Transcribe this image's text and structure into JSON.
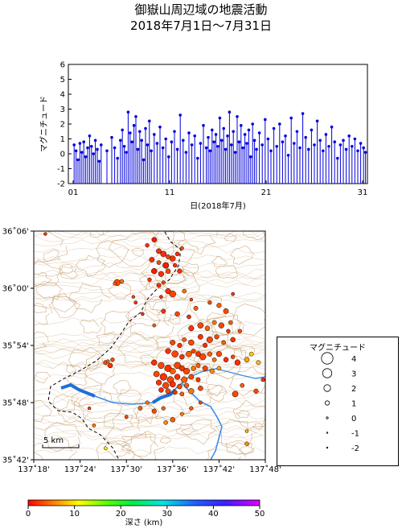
{
  "header": {
    "title_line1": "御嶽山周辺域の地震活動",
    "title_line2": "2018年7月1日～7月31日"
  },
  "colors": {
    "stem": "#0000dd",
    "map_contour": "#c8a070",
    "river": "#3a8ee6",
    "lake": "#1e6fd9"
  },
  "chart_data": [
    {
      "type": "scatter",
      "name": "magnitude-time",
      "title": "",
      "xlabel": "日(2018年7月)",
      "ylabel": "マグニチュード",
      "xlim": [
        0.5,
        31.5
      ],
      "ylim": [
        -2,
        6
      ],
      "x_ticks": [
        "01",
        "11",
        "21",
        "31"
      ],
      "x_tick_values": [
        1,
        11,
        21,
        31
      ],
      "y_ticks": [
        "-2",
        "-1",
        "0",
        "1",
        "2",
        "3",
        "4",
        "5",
        "6"
      ],
      "baseline": -2,
      "marker": "stem",
      "points": [
        [
          1.1,
          0.6
        ],
        [
          1.3,
          0.2
        ],
        [
          1.5,
          -0.4
        ],
        [
          1.7,
          0.7
        ],
        [
          1.9,
          0.1
        ],
        [
          2.1,
          0.8
        ],
        [
          2.3,
          -0.2
        ],
        [
          2.5,
          0.4
        ],
        [
          2.7,
          1.2
        ],
        [
          2.9,
          0.5
        ],
        [
          3.1,
          0.0
        ],
        [
          3.3,
          0.9
        ],
        [
          3.5,
          0.3
        ],
        [
          3.7,
          -0.5
        ],
        [
          3.9,
          0.6
        ],
        [
          4.5,
          0.2
        ],
        [
          5.0,
          1.1
        ],
        [
          5.3,
          0.4
        ],
        [
          5.6,
          -0.3
        ],
        [
          5.9,
          0.9
        ],
        [
          6.1,
          1.6
        ],
        [
          6.3,
          0.5
        ],
        [
          6.5,
          0.1
        ],
        [
          6.7,
          2.8
        ],
        [
          6.9,
          1.4
        ],
        [
          7.1,
          0.8
        ],
        [
          7.3,
          1.9
        ],
        [
          7.5,
          2.5
        ],
        [
          7.7,
          0.3
        ],
        [
          7.9,
          1.5
        ],
        [
          8.1,
          0.9
        ],
        [
          8.3,
          -0.4
        ],
        [
          8.5,
          1.7
        ],
        [
          8.7,
          0.6
        ],
        [
          8.9,
          2.2
        ],
        [
          9.1,
          0.2
        ],
        [
          9.4,
          1.3
        ],
        [
          9.7,
          0.7
        ],
        [
          10.0,
          1.8
        ],
        [
          10.3,
          0.4
        ],
        [
          10.6,
          1.0
        ],
        [
          10.9,
          -0.2
        ],
        [
          11.2,
          0.8
        ],
        [
          11.5,
          1.5
        ],
        [
          11.8,
          0.3
        ],
        [
          12.1,
          2.6
        ],
        [
          12.4,
          0.9
        ],
        [
          12.7,
          0.1
        ],
        [
          13.0,
          1.4
        ],
        [
          13.3,
          0.6
        ],
        [
          13.6,
          1.2
        ],
        [
          13.9,
          -0.3
        ],
        [
          14.2,
          0.7
        ],
        [
          14.5,
          1.9
        ],
        [
          14.8,
          0.4
        ],
        [
          15.0,
          1.1
        ],
        [
          15.2,
          0.2
        ],
        [
          15.4,
          1.6
        ],
        [
          15.6,
          0.8
        ],
        [
          15.8,
          1.3
        ],
        [
          16.0,
          0.5
        ],
        [
          16.2,
          2.4
        ],
        [
          16.4,
          0.9
        ],
        [
          16.6,
          1.7
        ],
        [
          16.8,
          0.3
        ],
        [
          17.0,
          1.2
        ],
        [
          17.2,
          2.8
        ],
        [
          17.4,
          0.6
        ],
        [
          17.6,
          1.5
        ],
        [
          17.8,
          0.1
        ],
        [
          18.0,
          2.5
        ],
        [
          18.2,
          0.8
        ],
        [
          18.4,
          1.9
        ],
        [
          18.6,
          0.4
        ],
        [
          18.8,
          1.3
        ],
        [
          19.0,
          0.7
        ],
        [
          19.2,
          1.6
        ],
        [
          19.4,
          -0.2
        ],
        [
          19.6,
          2.0
        ],
        [
          19.8,
          0.9
        ],
        [
          20.0,
          0.3
        ],
        [
          20.3,
          1.4
        ],
        [
          20.6,
          0.6
        ],
        [
          20.9,
          2.3
        ],
        [
          21.2,
          1.0
        ],
        [
          21.5,
          0.2
        ],
        [
          21.8,
          1.7
        ],
        [
          22.1,
          0.5
        ],
        [
          22.4,
          2.0
        ],
        [
          22.7,
          0.8
        ],
        [
          23.0,
          1.2
        ],
        [
          23.3,
          -0.1
        ],
        [
          23.6,
          2.4
        ],
        [
          23.9,
          0.7
        ],
        [
          24.2,
          1.5
        ],
        [
          24.5,
          0.4
        ],
        [
          24.8,
          2.7
        ],
        [
          25.1,
          1.1
        ],
        [
          25.4,
          0.3
        ],
        [
          25.7,
          1.6
        ],
        [
          26.0,
          0.6
        ],
        [
          26.3,
          2.2
        ],
        [
          26.6,
          0.9
        ],
        [
          26.9,
          0.2
        ],
        [
          27.2,
          1.3
        ],
        [
          27.5,
          0.5
        ],
        [
          27.8,
          1.8
        ],
        [
          28.1,
          0.8
        ],
        [
          28.4,
          -0.3
        ],
        [
          28.7,
          0.6
        ],
        [
          29.0,
          0.9
        ],
        [
          29.3,
          0.3
        ],
        [
          29.6,
          1.2
        ],
        [
          29.9,
          0.5
        ],
        [
          30.2,
          1.0
        ],
        [
          30.5,
          0.2
        ],
        [
          30.8,
          0.7
        ],
        [
          31.1,
          0.4
        ],
        [
          31.3,
          0.1
        ]
      ]
    },
    {
      "type": "scatter",
      "name": "epicenter-map",
      "title": "",
      "xlabel": "",
      "ylabel": "",
      "xlim": [
        137.3,
        137.8
      ],
      "ylim": [
        35.7,
        36.1
      ],
      "x_ticks": [
        "137˚18'",
        "137˚24'",
        "137˚30'",
        "137˚36'",
        "137˚42'",
        "137˚48'"
      ],
      "x_tick_values": [
        137.3,
        137.4,
        137.5,
        137.6,
        137.7,
        137.8
      ],
      "y_ticks": [
        "35˚42'",
        "35˚48'",
        "35˚54'",
        "36˚00'",
        "36˚06'"
      ],
      "y_tick_values": [
        35.7,
        35.8,
        35.9,
        36.0,
        36.1
      ],
      "scale_label": "5 km",
      "points_lon_lat_mag_depth": [
        [
          137.325,
          36.095,
          0.5,
          2
        ],
        [
          137.455,
          35.72,
          0.6,
          10
        ],
        [
          137.76,
          35.728,
          0.8,
          6
        ],
        [
          137.76,
          35.75,
          0.5,
          8
        ],
        [
          137.48,
          36.01,
          1.8,
          3
        ],
        [
          137.49,
          36.012,
          0.9,
          5
        ],
        [
          137.475,
          36.008,
          0.6,
          4
        ],
        [
          137.515,
          35.985,
          0.5,
          3
        ],
        [
          137.52,
          35.975,
          0.6,
          2
        ],
        [
          137.535,
          35.955,
          0.5,
          2
        ],
        [
          137.545,
          36.075,
          0.8,
          2
        ],
        [
          137.56,
          36.085,
          1.2,
          1
        ],
        [
          137.57,
          36.065,
          1.3,
          2
        ],
        [
          137.58,
          36.06,
          1.6,
          2
        ],
        [
          137.59,
          36.055,
          1.0,
          3
        ],
        [
          137.6,
          36.052,
          1.5,
          2
        ],
        [
          137.585,
          36.04,
          1.7,
          1
        ],
        [
          137.57,
          36.045,
          0.9,
          3
        ],
        [
          137.555,
          36.05,
          1.3,
          2
        ],
        [
          137.56,
          36.03,
          1.5,
          1
        ],
        [
          137.575,
          36.025,
          1.4,
          2
        ],
        [
          137.59,
          36.03,
          1.2,
          3
        ],
        [
          137.605,
          36.04,
          0.8,
          2
        ],
        [
          137.61,
          36.06,
          0.9,
          2
        ],
        [
          137.62,
          36.07,
          0.7,
          3
        ],
        [
          137.615,
          36.03,
          1.1,
          2
        ],
        [
          137.55,
          36.015,
          0.8,
          2
        ],
        [
          137.57,
          36.005,
          1.0,
          2
        ],
        [
          137.58,
          36.01,
          0.7,
          3
        ],
        [
          137.59,
          35.995,
          1.4,
          2
        ],
        [
          137.6,
          35.99,
          1.8,
          3
        ],
        [
          137.625,
          35.995,
          0.9,
          5
        ],
        [
          137.575,
          35.985,
          0.6,
          2
        ],
        [
          137.64,
          35.98,
          0.5,
          3
        ],
        [
          137.56,
          35.935,
          0.6,
          4
        ],
        [
          137.58,
          35.96,
          1.0,
          2
        ],
        [
          137.61,
          35.955,
          1.2,
          3
        ],
        [
          137.635,
          35.95,
          0.9,
          2
        ],
        [
          137.65,
          35.965,
          1.0,
          4
        ],
        [
          137.68,
          35.975,
          0.8,
          3
        ],
        [
          137.7,
          35.97,
          1.1,
          4
        ],
        [
          137.715,
          35.96,
          1.3,
          3
        ],
        [
          137.73,
          35.99,
          0.6,
          2
        ],
        [
          137.725,
          35.94,
          0.9,
          4
        ],
        [
          137.745,
          35.925,
          0.8,
          3
        ],
        [
          137.64,
          35.93,
          1.4,
          2
        ],
        [
          137.66,
          35.935,
          1.6,
          3
        ],
        [
          137.675,
          35.93,
          1.2,
          4
        ],
        [
          137.69,
          35.94,
          1.0,
          5
        ],
        [
          137.705,
          35.935,
          1.5,
          3
        ],
        [
          137.72,
          35.925,
          0.8,
          2
        ],
        [
          137.66,
          35.915,
          1.3,
          2
        ],
        [
          137.68,
          35.91,
          1.7,
          3
        ],
        [
          137.695,
          35.915,
          1.1,
          3
        ],
        [
          137.71,
          35.905,
          0.9,
          4
        ],
        [
          137.73,
          35.91,
          1.2,
          2
        ],
        [
          137.67,
          35.9,
          1.0,
          2
        ],
        [
          137.6,
          35.905,
          1.3,
          3
        ],
        [
          137.615,
          35.9,
          1.1,
          2
        ],
        [
          137.625,
          35.91,
          0.9,
          4
        ],
        [
          137.64,
          35.905,
          1.5,
          3
        ],
        [
          137.59,
          35.89,
          1.4,
          2
        ],
        [
          137.605,
          35.885,
          1.9,
          3
        ],
        [
          137.62,
          35.88,
          1.2,
          2
        ],
        [
          137.635,
          35.885,
          1.6,
          4
        ],
        [
          137.645,
          35.89,
          1.0,
          3
        ],
        [
          137.655,
          35.885,
          1.3,
          2
        ],
        [
          137.665,
          35.88,
          1.8,
          3
        ],
        [
          137.68,
          35.885,
          1.1,
          4
        ],
        [
          137.69,
          35.875,
          0.9,
          5
        ],
        [
          137.7,
          35.885,
          1.4,
          3
        ],
        [
          137.715,
          35.875,
          1.2,
          2
        ],
        [
          137.73,
          35.88,
          0.8,
          3
        ],
        [
          137.74,
          35.87,
          1.5,
          2
        ],
        [
          137.76,
          35.875,
          1.2,
          7
        ],
        [
          137.77,
          35.885,
          0.9,
          9
        ],
        [
          137.785,
          35.87,
          1.0,
          8
        ],
        [
          137.56,
          35.87,
          1.5,
          2
        ],
        [
          137.575,
          35.865,
          1.8,
          3
        ],
        [
          137.59,
          35.86,
          2.0,
          2
        ],
        [
          137.6,
          35.855,
          1.6,
          4
        ],
        [
          137.61,
          35.865,
          1.9,
          3
        ],
        [
          137.62,
          35.86,
          1.4,
          2
        ],
        [
          137.63,
          35.855,
          1.7,
          3
        ],
        [
          137.645,
          35.86,
          1.2,
          5
        ],
        [
          137.655,
          35.865,
          1.0,
          4
        ],
        [
          137.67,
          35.86,
          1.3,
          3
        ],
        [
          137.685,
          35.855,
          1.1,
          6
        ],
        [
          137.7,
          35.86,
          0.9,
          7
        ],
        [
          137.565,
          35.85,
          1.6,
          3
        ],
        [
          137.58,
          35.845,
          2.1,
          2
        ],
        [
          137.595,
          35.84,
          1.9,
          3
        ],
        [
          137.61,
          35.845,
          1.5,
          2
        ],
        [
          137.625,
          35.84,
          1.7,
          4
        ],
        [
          137.64,
          35.845,
          1.3,
          3
        ],
        [
          137.655,
          35.84,
          1.0,
          2
        ],
        [
          137.57,
          35.835,
          1.4,
          2
        ],
        [
          137.585,
          35.83,
          1.8,
          3
        ],
        [
          137.6,
          35.832,
          1.6,
          2
        ],
        [
          137.615,
          35.828,
          1.2,
          3
        ],
        [
          137.63,
          35.83,
          1.1,
          4
        ],
        [
          137.59,
          35.82,
          1.3,
          3
        ],
        [
          137.605,
          35.818,
          1.0,
          2
        ],
        [
          137.62,
          35.815,
          0.9,
          4
        ],
        [
          137.575,
          35.822,
          1.2,
          2
        ],
        [
          137.64,
          35.82,
          1.5,
          5
        ],
        [
          137.66,
          35.825,
          1.2,
          3
        ],
        [
          137.66,
          35.8,
          0.7,
          3
        ],
        [
          137.455,
          35.87,
          1.0,
          3
        ],
        [
          137.465,
          35.865,
          1.2,
          2
        ],
        [
          137.47,
          35.875,
          0.8,
          3
        ],
        [
          137.46,
          35.872,
          0.6,
          4
        ],
        [
          137.53,
          35.79,
          0.9,
          4
        ],
        [
          137.545,
          35.8,
          0.7,
          5
        ],
        [
          137.56,
          35.785,
          1.1,
          3
        ],
        [
          137.58,
          35.79,
          0.8,
          4
        ],
        [
          137.5,
          35.775,
          0.6,
          3
        ],
        [
          137.585,
          35.765,
          0.9,
          6
        ],
        [
          137.6,
          35.77,
          1.2,
          4
        ],
        [
          137.62,
          35.78,
          0.7,
          5
        ],
        [
          137.64,
          35.79,
          0.8,
          4
        ],
        [
          137.42,
          35.79,
          0.5,
          3
        ],
        [
          137.43,
          35.76,
          0.6,
          5
        ],
        [
          137.78,
          35.82,
          1.1,
          3
        ],
        [
          137.795,
          35.84,
          0.8,
          2
        ],
        [
          137.735,
          35.815,
          1.6,
          3
        ],
        [
          137.75,
          35.83,
          0.9,
          4
        ]
      ]
    },
    {
      "type": "table",
      "name": "magnitude-legend",
      "title": "マグニチュード",
      "entries": [
        "4",
        "3",
        "2",
        "1",
        "0",
        "-1",
        "-2"
      ],
      "entry_values": [
        4,
        3,
        2,
        1,
        0,
        -1,
        -2
      ]
    },
    {
      "type": "heatmap",
      "name": "depth-colorbar",
      "title": "",
      "xlabel": "深さ (km)",
      "xlim": [
        0,
        50
      ],
      "x_ticks": [
        "0",
        "10",
        "20",
        "30",
        "40",
        "50"
      ],
      "x_tick_values": [
        0,
        10,
        20,
        30,
        40,
        50
      ]
    }
  ]
}
